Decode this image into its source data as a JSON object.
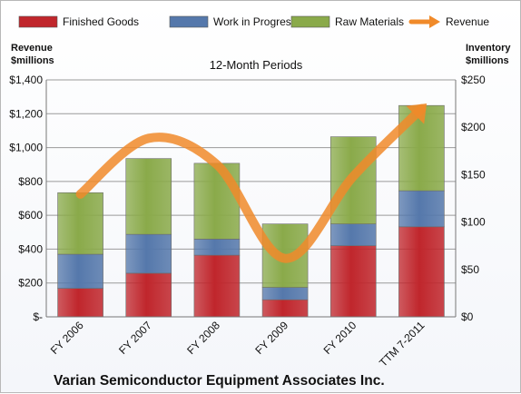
{
  "chart_data": {
    "type": "bar",
    "stacked": true,
    "title": "12-Month Periods",
    "footer": "Varian Semiconductor Equipment Associates Inc.",
    "categories": [
      "FY 2006",
      "FY 2007",
      "FY 2008",
      "FY 2009",
      "FY 2010",
      "TTM 7-2011"
    ],
    "series": [
      {
        "name": "Finished Goods",
        "color": "#c0262c",
        "axis": "right",
        "values": [
          30,
          46,
          65,
          18,
          75,
          95
        ]
      },
      {
        "name": "Work in Progress",
        "color": "#5578ab",
        "axis": "right",
        "values": [
          36,
          41,
          17,
          13,
          23,
          38
        ]
      },
      {
        "name": "Raw Materials",
        "color": "#8aaa4a",
        "axis": "right",
        "values": [
          65,
          80,
          80,
          67,
          92,
          90
        ]
      },
      {
        "name": "Revenue",
        "color": "#f08a2a",
        "axis": "left",
        "type": "line",
        "values": [
          725,
          1055,
          900,
          345,
          830,
          1230
        ]
      }
    ],
    "left_axis": {
      "label_line1": "Revenue",
      "label_line2": "$millions",
      "ylim": [
        0,
        1400
      ],
      "ticks": [
        "$-",
        "$200",
        "$400",
        "$600",
        "$800",
        "$1,000",
        "$1,200",
        "$1,400"
      ]
    },
    "right_axis": {
      "label_line1": "Inventory",
      "label_line2": "$millions",
      "ylim": [
        0,
        250
      ],
      "ticks": [
        "$0",
        "$50",
        "$100",
        "$150",
        "$200",
        "$250"
      ]
    },
    "grid": true,
    "legend_position": "top"
  }
}
